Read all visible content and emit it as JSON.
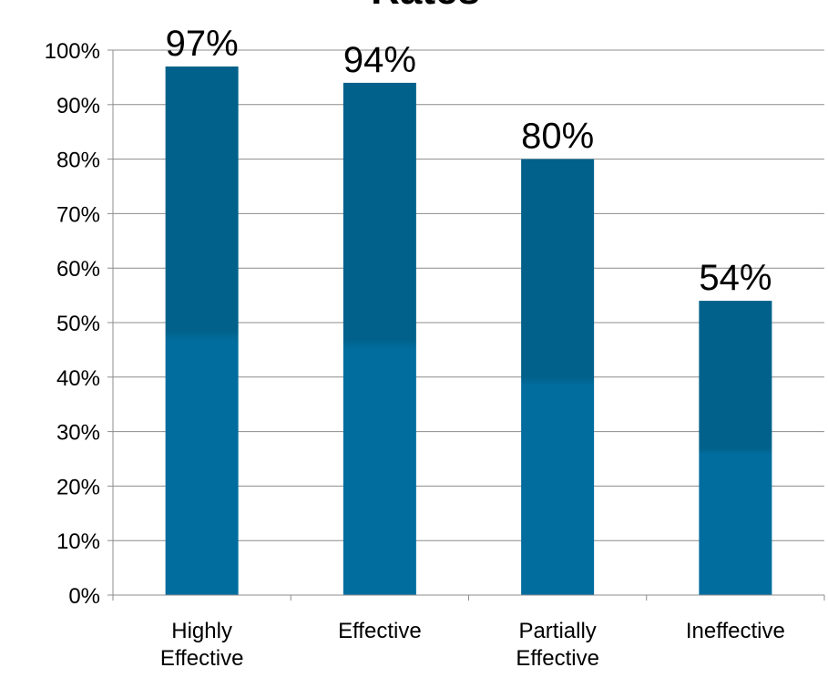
{
  "chart_data": {
    "type": "bar",
    "title": "Rates",
    "xlabel": "",
    "ylabel": "",
    "categories": [
      [
        "Highly",
        "Effective"
      ],
      [
        "Effective"
      ],
      [
        "Partially",
        "Effective"
      ],
      [
        "Ineffective"
      ]
    ],
    "values": [
      97,
      94,
      80,
      54
    ],
    "data_labels": [
      "97%",
      "94%",
      "80%",
      "54%"
    ],
    "ylim": [
      0,
      100
    ],
    "yticks": [
      "0%",
      "10%",
      "20%",
      "30%",
      "40%",
      "50%",
      "60%",
      "70%",
      "80%",
      "90%",
      "100%"
    ],
    "grid": true,
    "legend": "none",
    "colors": {
      "bar_top": "#01618A",
      "bar_bottom": "#016D9E",
      "grid": "#8C8C8C",
      "axis": "#8C8C8C"
    }
  }
}
